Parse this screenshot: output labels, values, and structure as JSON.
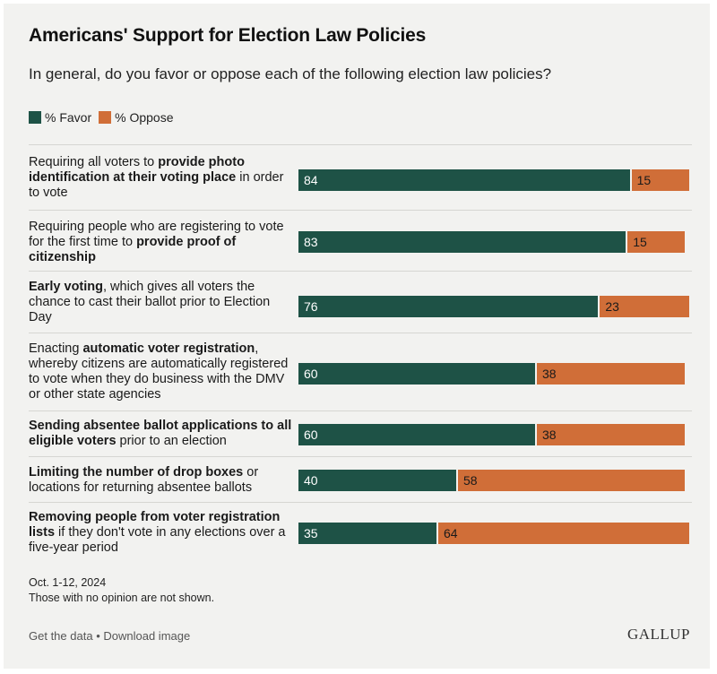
{
  "title": "Americans' Support for Election Law Policies",
  "subtitle": "In general, do you favor or oppose each of the following election law policies?",
  "legend": {
    "favor": "% Favor",
    "oppose": "% Oppose"
  },
  "colors": {
    "favor": "#1e5246",
    "oppose": "#d06e38",
    "background": "#f2f2f0"
  },
  "notes": {
    "date": "Oct. 1-12, 2024",
    "caveat": "Those with no opinion are not shown."
  },
  "footer": {
    "get_data": "Get the data",
    "separator": "•",
    "download": "Download image",
    "logo": "GALLUP"
  },
  "chart_data": {
    "type": "bar",
    "orientation": "horizontal",
    "stacked": true,
    "title": "Americans' Support for Election Law Policies",
    "subtitle": "In general, do you favor or oppose each of the following election law policies?",
    "xlim": [
      0,
      100
    ],
    "grid": false,
    "legend_position": "top-left",
    "categories": [
      "Requiring all voters to provide photo identification at their voting place in order to vote",
      "Requiring people who are registering to vote for the first time to provide proof of citizenship",
      "Early voting, which gives all voters the chance to cast their ballot prior to Election Day",
      "Enacting automatic voter registration, whereby citizens are automatically registered to vote when they do business with the DMV or other state agencies",
      "Sending absentee ballot applications to all eligible voters prior to an election",
      "Limiting the number of drop boxes or locations for returning absentee ballots",
      "Removing people from voter registration lists if they don't vote in any elections over a five-year period"
    ],
    "category_parts": [
      [
        {
          "t": "Requiring all voters to ",
          "b": false
        },
        {
          "t": "provide photo identification at their voting place",
          "b": true
        },
        {
          "t": " in order to vote",
          "b": false
        }
      ],
      [
        {
          "t": "Requiring people who are registering to vote for the first time to ",
          "b": false
        },
        {
          "t": "provide proof of citizenship",
          "b": true
        }
      ],
      [
        {
          "t": "Early voting",
          "b": true
        },
        {
          "t": ", which gives all voters the chance to cast their ballot prior to Election Day",
          "b": false
        }
      ],
      [
        {
          "t": "Enacting ",
          "b": false
        },
        {
          "t": "automatic voter registration",
          "b": true
        },
        {
          "t": ", whereby citizens are automatically registered to vote when they do business with the DMV or other state agencies",
          "b": false
        }
      ],
      [
        {
          "t": "Sending absentee ballot applications to all eligible voters",
          "b": true
        },
        {
          "t": " prior to an election",
          "b": false
        }
      ],
      [
        {
          "t": "Limiting the number of drop boxes",
          "b": true
        },
        {
          "t": " or locations for returning absentee ballots",
          "b": false
        }
      ],
      [
        {
          "t": "Removing people from voter registration lists",
          "b": true
        },
        {
          "t": " if they don't vote in any elections over a five-year period",
          "b": false
        }
      ]
    ],
    "series": [
      {
        "name": "% Favor",
        "values": [
          84,
          83,
          76,
          60,
          60,
          40,
          35
        ]
      },
      {
        "name": "% Oppose",
        "values": [
          15,
          15,
          23,
          38,
          38,
          58,
          64
        ]
      }
    ]
  }
}
